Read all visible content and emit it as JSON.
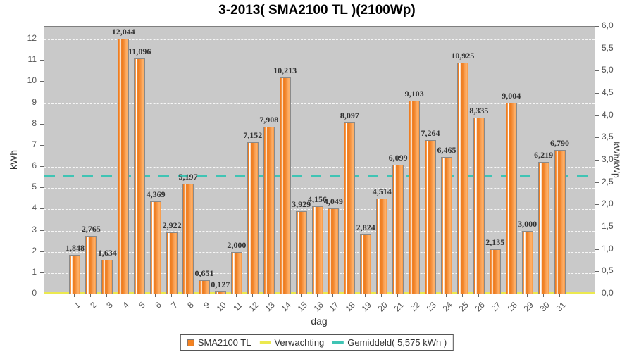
{
  "title": "3-2013( SMA2100 TL )(2100Wp)",
  "chart_data": {
    "type": "bar",
    "title": "3-2013( SMA2100 TL )(2100Wp)",
    "xlabel": "dag",
    "ylabel_left": "kWh",
    "ylabel_right": "kWh/kWp",
    "ylim_left": [
      0,
      12.6
    ],
    "ylim_right": [
      0,
      6.0
    ],
    "grid": "horizontal white dashed, 1 kWh steps",
    "legend_position": "bottom",
    "left_ticks": [
      "0",
      "1",
      "2",
      "3",
      "4",
      "5",
      "6",
      "7",
      "8",
      "9",
      "10",
      "11",
      "12"
    ],
    "right_ticks": [
      "0,0",
      "0,5",
      "1,0",
      "1,5",
      "2,0",
      "2,5",
      "3,0",
      "3,5",
      "4,0",
      "4,5",
      "5,0",
      "5,5",
      "6,0"
    ],
    "categories": [
      "1",
      "2",
      "3",
      "4",
      "5",
      "6",
      "7",
      "8",
      "9",
      "10",
      "11",
      "12",
      "13",
      "14",
      "15",
      "16",
      "17",
      "18",
      "19",
      "20",
      "21",
      "22",
      "23",
      "24",
      "25",
      "26",
      "27",
      "28",
      "29",
      "30",
      "31"
    ],
    "series": [
      {
        "name": "SMA2100 TL",
        "type": "bar",
        "color": "#F58220",
        "values": [
          1.848,
          2.765,
          1.634,
          12.044,
          11.096,
          4.369,
          2.922,
          5.197,
          0.651,
          0.127,
          2.0,
          7.152,
          7.908,
          10.213,
          3.929,
          4.156,
          4.049,
          8.097,
          2.824,
          4.514,
          6.099,
          9.103,
          7.264,
          6.465,
          10.925,
          8.335,
          2.135,
          9.004,
          3.0,
          6.219,
          6.79
        ],
        "labels": [
          "1,848",
          "2,765",
          "1,634",
          "12,044",
          "11,096",
          "4,369",
          "2,922",
          "5,197",
          "0,651",
          "0,127",
          "2,000",
          "7,152",
          "7,908",
          "10,213",
          "3,929",
          "4,156",
          "4,049",
          "8,097",
          "2,824",
          "4,514",
          "6,099",
          "9,103",
          "7,264",
          "6,465",
          "10,925",
          "8,335",
          "2,135",
          "9,004",
          "3,000",
          "6,219",
          "6,790"
        ]
      },
      {
        "name": "Verwachting",
        "type": "line",
        "color": "#ECE94F",
        "value": 0.0
      },
      {
        "name": "Gemiddeld",
        "type": "line",
        "color": "#3FC4B4",
        "value": 5.575,
        "style": "dashed"
      }
    ]
  },
  "legend": {
    "items": [
      {
        "label": "SMA2100 TL",
        "swatch": "square",
        "color": "#F58220"
      },
      {
        "label": "Verwachting",
        "swatch": "line",
        "color": "#ECE94F"
      },
      {
        "label": "Gemiddeld( 5,575 kWh )",
        "swatch": "line",
        "color": "#3FC4B4"
      }
    ]
  }
}
